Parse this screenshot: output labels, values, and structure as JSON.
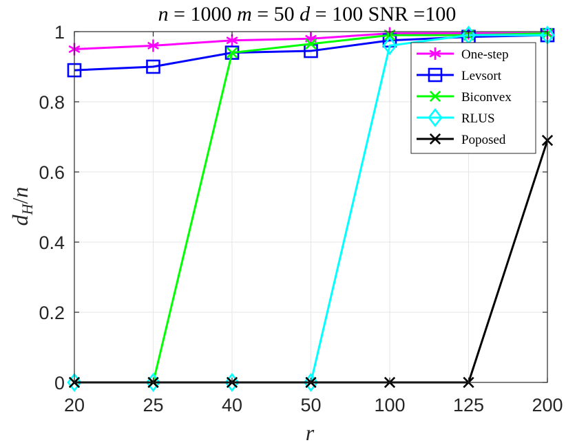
{
  "chart_data": {
    "type": "line",
    "title": "n = 1000 m = 50 d = 100 SNR =100",
    "title_parts": [
      "n",
      " = 1000 ",
      "m",
      " = 50 ",
      "d",
      " = 100 SNR =100"
    ],
    "xlabel": "r",
    "ylabel": "d_H/n",
    "ylabel_parts": [
      "d",
      "H",
      "/",
      "n"
    ],
    "categories": [
      "20",
      "25",
      "40",
      "50",
      "100",
      "125",
      "200"
    ],
    "ylim": [
      0,
      1
    ],
    "yticks": [
      "0",
      "0.2",
      "0.4",
      "0.6",
      "0.8",
      "1"
    ],
    "grid": true,
    "legend_position": "top-right",
    "series": [
      {
        "name": "One-step",
        "color": "#ff00ff",
        "marker": "asterisk",
        "values": [
          0.95,
          0.96,
          0.975,
          0.98,
          0.995,
          0.995,
          0.995
        ]
      },
      {
        "name": "Levsort",
        "color": "#0000ff",
        "marker": "square",
        "values": [
          0.89,
          0.9,
          0.94,
          0.945,
          0.975,
          0.985,
          0.99
        ]
      },
      {
        "name": "Biconvex",
        "color": "#00ff00",
        "marker": "x",
        "values": [
          0.0,
          0.0,
          0.94,
          0.965,
          0.99,
          0.99,
          0.995
        ]
      },
      {
        "name": "RLUS",
        "color": "#00ffff",
        "marker": "diamond",
        "values": [
          0.0,
          0.0,
          0.0,
          0.0,
          0.96,
          0.99,
          0.99
        ]
      },
      {
        "name": "Poposed",
        "color": "#000000",
        "marker": "x",
        "values": [
          0.0,
          0.0,
          0.0,
          0.0,
          0.0,
          0.0,
          0.69
        ]
      }
    ]
  }
}
